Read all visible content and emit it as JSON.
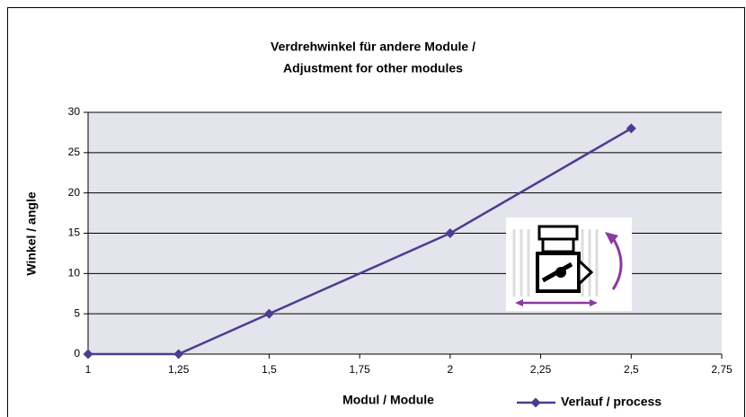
{
  "chart_data": {
    "type": "line",
    "title": [
      "Verdrehwinkel für andere Module /",
      "Adjustment for other modules"
    ],
    "x_label": "Modul / Module",
    "y_label": "Winkel / angle",
    "x": [
      1,
      1.25,
      1.5,
      2,
      2.5
    ],
    "series": [
      {
        "name": "Verlauf / process",
        "color": "#4b3d8f",
        "values": [
          0,
          0,
          5,
          15,
          28
        ]
      }
    ],
    "xlim": [
      1,
      2.75
    ],
    "xticks": [
      1,
      {
        "value": 1.25,
        "label": "1,25"
      },
      {
        "value": 1.5,
        "label": "1,5"
      },
      {
        "value": 1.75,
        "label": "1,75"
      },
      2,
      {
        "value": 2.25,
        "label": "2,25"
      },
      {
        "value": 2.5,
        "label": "2,5"
      },
      {
        "value": 2.75,
        "label": "2,75"
      }
    ],
    "ylim": [
      0,
      30
    ],
    "yticks": [
      0,
      5,
      10,
      15,
      20,
      25,
      30
    ],
    "grid": true,
    "legend": "bottom-right"
  }
}
